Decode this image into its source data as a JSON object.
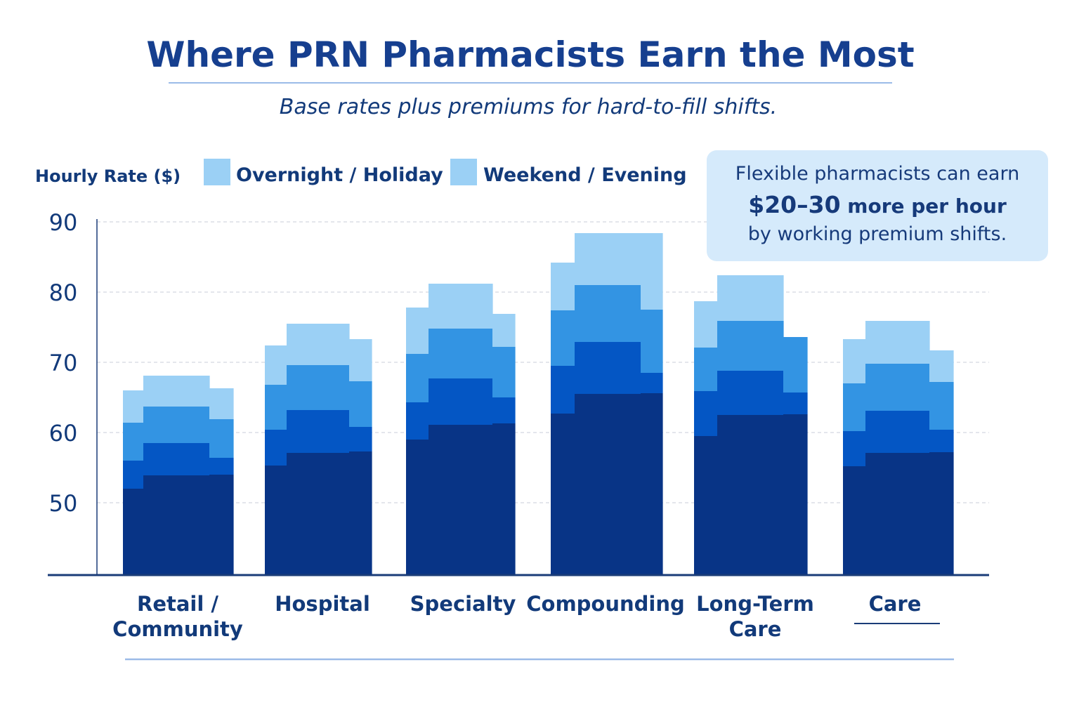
{
  "colors": {
    "title": "#163f8f",
    "text": "#123a7a",
    "base": "#083486",
    "layer2": "#0456c4",
    "layer3": "#3394e3",
    "layer4": "#9bd0f5",
    "callout_bg": "#d5eafb",
    "axis": "#1a3c78",
    "grid": "#c8ced8",
    "rule": "#9bbbe8"
  },
  "callout": {
    "line1": "Flexible pharmacists can earn",
    "line2_bold": "$20–30",
    "line2_rest": " more per hour",
    "line3": "by working premium shifts."
  },
  "chart_data": {
    "type": "bar",
    "title": "Where PRN Pharmacists Earn the Most",
    "subtitle": "Base rates plus premiums for hard-to-fill shifts.",
    "ylabel": "Hourly Rate ($)",
    "xlabel": "",
    "ylim": [
      40,
      90
    ],
    "yticks": [
      50,
      60,
      70,
      80,
      90
    ],
    "grid": true,
    "legend": {
      "placement": "top-left",
      "entries": [
        {
          "label": "Overnight / Holiday",
          "color": "#9bd0f5"
        },
        {
          "label": "Weekend / Evening",
          "color": "#9bd0f5"
        }
      ]
    },
    "categories": [
      {
        "label_lines": [
          "Retail /",
          "Community"
        ]
      },
      {
        "label_lines": [
          "Hospital"
        ]
      },
      {
        "label_lines": [
          "Specialty"
        ]
      },
      {
        "label_lines": [
          "Compounding"
        ]
      },
      {
        "label_lines": [
          "Long-Term",
          "Care"
        ]
      },
      {
        "label_lines": [
          "Care"
        ]
      }
    ],
    "layer_names": [
      "base",
      "tier-2",
      "tier-3",
      "tier-4"
    ],
    "bars": [
      {
        "left": {
          "cum": [
            52,
            56,
            61.4,
            66
          ]
        },
        "center": {
          "cum": [
            53.9,
            58.5,
            63.7,
            68.1
          ]
        },
        "right": {
          "cum": [
            54,
            56.4,
            61.9,
            66.3
          ]
        }
      },
      {
        "left": {
          "cum": [
            55.3,
            60.4,
            66.8,
            72.4
          ]
        },
        "center": {
          "cum": [
            57.1,
            63.2,
            69.6,
            75.5
          ]
        },
        "right": {
          "cum": [
            57.3,
            60.8,
            67.3,
            73.3
          ]
        }
      },
      {
        "left": {
          "cum": [
            59,
            64.3,
            71.2,
            77.8
          ]
        },
        "center": {
          "cum": [
            61.1,
            67.7,
            74.8,
            81.2
          ]
        },
        "right": {
          "cum": [
            61.3,
            65,
            72.2,
            76.9
          ]
        }
      },
      {
        "left": {
          "cum": [
            62.7,
            69.5,
            77.4,
            84.2
          ]
        },
        "center": {
          "cum": [
            65.5,
            72.9,
            81,
            88.4
          ]
        },
        "right": {
          "cum": [
            65.6,
            68.5,
            77.5,
            88.4
          ]
        }
      },
      {
        "left": {
          "cum": [
            59.5,
            65.9,
            72.1,
            78.7
          ]
        },
        "center": {
          "cum": [
            62.5,
            68.8,
            75.9,
            82.4
          ]
        },
        "right": {
          "cum": [
            62.6,
            65.7,
            73.6,
            73.6
          ]
        }
      },
      {
        "left": {
          "cum": [
            55.2,
            60.2,
            67,
            73.3
          ]
        },
        "center": {
          "cum": [
            57.1,
            63.1,
            69.8,
            75.9
          ]
        },
        "right": {
          "cum": [
            57.2,
            60.4,
            67.2,
            71.7
          ]
        }
      }
    ]
  }
}
